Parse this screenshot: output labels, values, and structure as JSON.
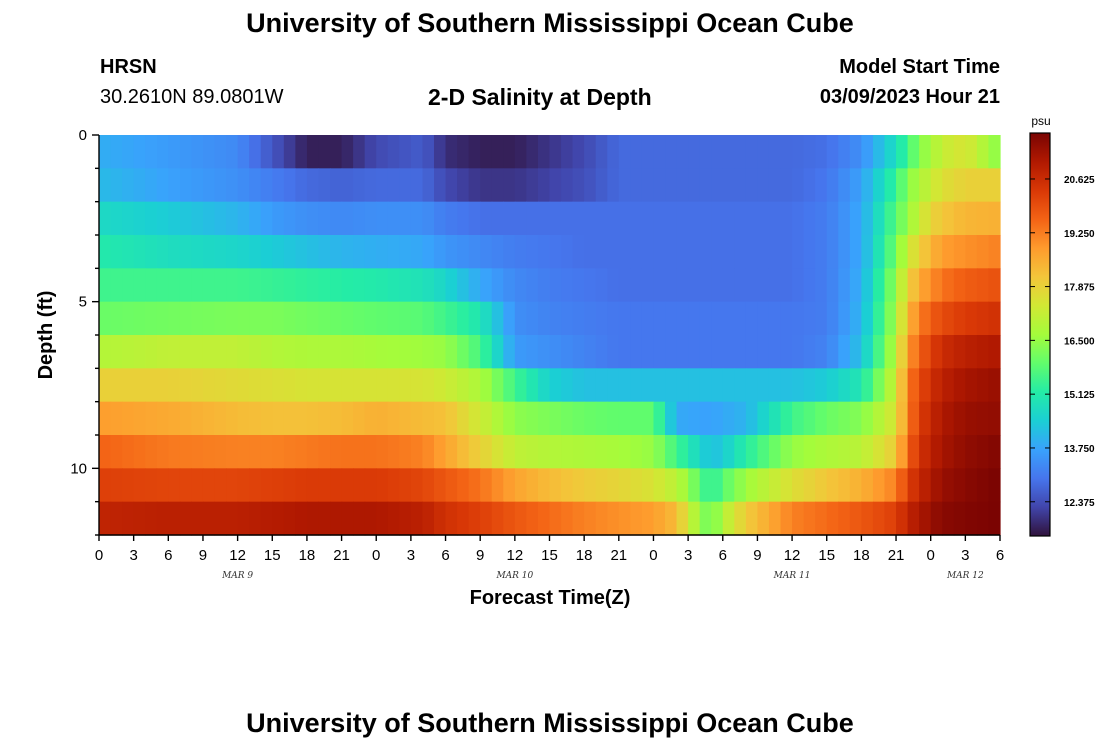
{
  "header": {
    "title": "University of Southern Mississippi Ocean Cube",
    "station": "HRSN",
    "coords": "30.2610N  89.0801W",
    "plot_title": "2-D Salinity at Depth",
    "start_label": "Model Start Time",
    "start_value": "03/09/2023 Hour 21"
  },
  "footer": {
    "title": "University of Southern Mississippi Ocean Cube"
  },
  "chart_data": {
    "type": "heatmap",
    "title": "2-D Salinity at Depth",
    "xlabel": "Forecast Time(Z)",
    "ylabel": "Depth (ft)",
    "x_ticks": [
      "0",
      "3",
      "6",
      "9",
      "12",
      "15",
      "18",
      "21",
      "0",
      "3",
      "6",
      "9",
      "12",
      "15",
      "18",
      "21",
      "0",
      "3",
      "6",
      "9",
      "12",
      "15",
      "18",
      "21",
      "0",
      "3",
      "6"
    ],
    "date_labels": [
      {
        "label": "MAR 9",
        "hour": 12
      },
      {
        "label": "MAR 10",
        "hour": 36
      },
      {
        "label": "MAR 11",
        "hour": 60
      },
      {
        "label": "MAR 12",
        "hour": 75
      }
    ],
    "x_range_hours": [
      0,
      78
    ],
    "y_ticks": [
      0,
      5,
      10
    ],
    "y_range": [
      0,
      12
    ],
    "colorbar": {
      "unit": "psu",
      "ticks": [
        12.375,
        13.75,
        15.125,
        16.5,
        17.875,
        19.25,
        20.625
      ],
      "tick_labels": [
        "12.375",
        "13.750",
        "15.125",
        "16.500",
        "17.875",
        "19.250",
        "20.625"
      ],
      "range": [
        11.5,
        21.8
      ],
      "colors": [
        "#30123b",
        "#4145ab",
        "#4675ed",
        "#39a2fc",
        "#1bcfd4",
        "#24eca6",
        "#61fc6c",
        "#a4fc3b",
        "#d1e834",
        "#f3c63a",
        "#fe9b2d",
        "#f36315",
        "#d93806",
        "#b11901",
        "#7a0402"
      ]
    },
    "depth_levels": [
      0.5,
      1.5,
      2.5,
      3.5,
      4.5,
      5.5,
      6.5,
      7.5,
      8.5,
      9.5,
      10.5,
      11.5
    ],
    "time_knots_hours": [
      0,
      6,
      12,
      15,
      18,
      21,
      24,
      28,
      30,
      33,
      36,
      39,
      42,
      45,
      48,
      50,
      51,
      52,
      53,
      54,
      56,
      60,
      63,
      66,
      69,
      70,
      71,
      72,
      73,
      75,
      78
    ],
    "salinity_psu": [
      [
        13.9,
        13.6,
        13.3,
        12.5,
        11.7,
        11.7,
        12.3,
        12.6,
        11.9,
        11.7,
        11.7,
        12.0,
        12.3,
        12.8,
        12.8,
        12.8,
        12.8,
        12.8,
        12.8,
        12.8,
        12.8,
        12.8,
        12.9,
        13.4,
        14.8,
        15.5,
        16.3,
        16.7,
        17.2,
        17.5,
        16.3
      ],
      [
        14.1,
        13.7,
        13.4,
        13.1,
        12.8,
        12.7,
        12.8,
        12.8,
        12.3,
        12.0,
        12.0,
        12.2,
        12.4,
        12.8,
        12.8,
        12.8,
        12.8,
        12.8,
        12.8,
        12.8,
        12.8,
        12.8,
        13.0,
        13.7,
        15.4,
        16.3,
        16.8,
        17.2,
        17.6,
        17.9,
        17.9
      ],
      [
        14.7,
        14.4,
        14.0,
        13.6,
        13.4,
        13.3,
        13.4,
        13.4,
        13.1,
        12.9,
        12.9,
        12.9,
        12.9,
        12.9,
        12.9,
        12.9,
        12.9,
        12.9,
        12.9,
        12.9,
        12.9,
        12.9,
        13.1,
        13.8,
        15.8,
        16.5,
        17.2,
        17.8,
        18.1,
        18.4,
        18.5
      ],
      [
        15.1,
        14.8,
        14.6,
        14.4,
        14.2,
        14.0,
        13.9,
        13.8,
        13.5,
        13.3,
        13.1,
        13.0,
        12.9,
        12.9,
        12.9,
        12.9,
        12.9,
        12.9,
        12.9,
        12.9,
        12.9,
        12.9,
        13.1,
        13.8,
        16.1,
        17.2,
        17.9,
        18.4,
        18.8,
        19.0,
        19.2
      ],
      [
        15.5,
        15.5,
        15.5,
        15.4,
        15.3,
        15.2,
        15.1,
        14.9,
        14.6,
        13.8,
        13.3,
        13.1,
        13.0,
        12.9,
        12.9,
        12.9,
        12.9,
        12.9,
        12.9,
        12.9,
        12.9,
        12.9,
        13.1,
        13.9,
        16.5,
        17.8,
        18.6,
        19.0,
        19.4,
        19.7,
        19.9
      ],
      [
        16.0,
        16.1,
        16.2,
        16.2,
        16.1,
        16.0,
        15.9,
        15.8,
        15.5,
        15.0,
        13.4,
        13.2,
        13.1,
        13.0,
        13.0,
        13.0,
        13.0,
        13.0,
        13.0,
        13.0,
        13.0,
        13.0,
        13.1,
        14.0,
        16.7,
        18.3,
        19.2,
        19.7,
        20.0,
        20.3,
        20.5
      ],
      [
        16.9,
        17.1,
        17.1,
        16.9,
        16.8,
        16.8,
        16.7,
        16.6,
        16.5,
        15.6,
        13.6,
        13.4,
        13.2,
        13.0,
        13.0,
        13.0,
        13.0,
        13.0,
        13.0,
        13.0,
        13.0,
        13.0,
        13.2,
        14.2,
        17.0,
        18.8,
        19.6,
        20.2,
        20.6,
        20.9,
        21.1
      ],
      [
        17.9,
        17.9,
        17.7,
        17.6,
        17.5,
        17.5,
        17.5,
        17.5,
        17.3,
        16.8,
        15.5,
        14.5,
        14.2,
        14.2,
        14.2,
        14.2,
        14.2,
        14.2,
        14.2,
        14.2,
        14.2,
        14.2,
        14.4,
        15.0,
        17.3,
        19.2,
        20.0,
        20.5,
        20.9,
        21.2,
        21.4
      ],
      [
        18.8,
        18.6,
        18.3,
        18.2,
        18.2,
        18.3,
        18.5,
        18.3,
        18.2,
        17.3,
        16.4,
        16.2,
        16.0,
        15.9,
        15.9,
        13.8,
        13.8,
        13.7,
        13.7,
        13.8,
        14.0,
        15.5,
        16.0,
        16.3,
        17.5,
        19.2,
        20.2,
        20.7,
        21.1,
        21.4,
        21.5
      ],
      [
        19.6,
        19.3,
        19.2,
        19.2,
        19.3,
        19.4,
        19.4,
        19.2,
        18.7,
        17.9,
        17.1,
        16.9,
        16.8,
        16.7,
        16.5,
        15.5,
        15.1,
        14.6,
        14.2,
        14.4,
        15.2,
        16.5,
        16.8,
        17.0,
        18.0,
        19.6,
        20.4,
        20.9,
        21.2,
        21.5,
        21.7
      ],
      [
        20.2,
        20.1,
        20.1,
        20.2,
        20.3,
        20.3,
        20.3,
        20.1,
        19.8,
        19.4,
        18.7,
        18.3,
        18.0,
        17.8,
        17.5,
        17.0,
        16.5,
        15.8,
        15.2,
        15.8,
        16.6,
        17.6,
        18.1,
        18.5,
        19.2,
        20.2,
        20.7,
        21.1,
        21.4,
        21.6,
        21.8
      ],
      [
        20.8,
        20.9,
        20.9,
        21.0,
        21.1,
        21.1,
        21.1,
        20.9,
        20.5,
        20.2,
        19.8,
        19.5,
        19.2,
        19.0,
        18.8,
        18.3,
        17.4,
        16.5,
        16.0,
        16.9,
        18.0,
        19.2,
        19.5,
        19.8,
        20.2,
        20.8,
        21.1,
        21.4,
        21.6,
        21.7,
        21.8
      ]
    ]
  }
}
